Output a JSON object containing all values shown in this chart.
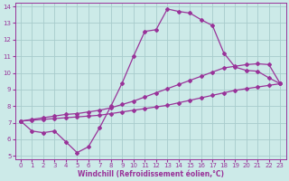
{
  "background_color": "#cceae8",
  "line_color": "#993399",
  "grid_color": "#a8cccc",
  "xlabel": "Windchill (Refroidissement éolien,°C)",
  "xlim": [
    -0.5,
    23.5
  ],
  "ylim": [
    4.8,
    14.2
  ],
  "xticks": [
    0,
    1,
    2,
    3,
    4,
    5,
    6,
    7,
    8,
    9,
    10,
    11,
    12,
    13,
    14,
    15,
    16,
    17,
    18,
    19,
    20,
    21,
    22,
    23
  ],
  "yticks": [
    5,
    6,
    7,
    8,
    9,
    10,
    11,
    12,
    13,
    14
  ],
  "line1_x": [
    0,
    1,
    2,
    3,
    4,
    5,
    6,
    7,
    8,
    9,
    10,
    11,
    12,
    13,
    14,
    15,
    16,
    17,
    18,
    19,
    20,
    21,
    22,
    23
  ],
  "line1_y": [
    7.1,
    6.5,
    6.4,
    6.5,
    5.85,
    5.2,
    5.55,
    6.7,
    8.0,
    9.4,
    11.0,
    12.5,
    12.6,
    13.85,
    13.7,
    13.6,
    13.2,
    12.85,
    11.2,
    10.35,
    10.15,
    10.1,
    9.7,
    9.35
  ],
  "line2_x": [
    0,
    1,
    2,
    3,
    4,
    5,
    6,
    7,
    8,
    9,
    10,
    11,
    12,
    13,
    14,
    15,
    16,
    17,
    18,
    19,
    20,
    21,
    22,
    23
  ],
  "line2_y": [
    7.1,
    7.2,
    7.3,
    7.4,
    7.5,
    7.55,
    7.65,
    7.75,
    7.9,
    8.1,
    8.3,
    8.55,
    8.8,
    9.05,
    9.3,
    9.55,
    9.8,
    10.05,
    10.3,
    10.4,
    10.5,
    10.55,
    10.5,
    9.35
  ],
  "line3_x": [
    0,
    1,
    2,
    3,
    4,
    5,
    6,
    7,
    8,
    9,
    10,
    11,
    12,
    13,
    14,
    15,
    16,
    17,
    18,
    19,
    20,
    21,
    22,
    23
  ],
  "line3_y": [
    7.1,
    7.15,
    7.2,
    7.25,
    7.3,
    7.35,
    7.4,
    7.45,
    7.55,
    7.65,
    7.75,
    7.85,
    7.95,
    8.05,
    8.2,
    8.35,
    8.5,
    8.65,
    8.8,
    8.95,
    9.05,
    9.15,
    9.25,
    9.35
  ],
  "marker": "D",
  "marker_size": 2.0,
  "linewidth": 0.9,
  "tick_fontsize": 5.0,
  "xlabel_fontsize": 5.5
}
